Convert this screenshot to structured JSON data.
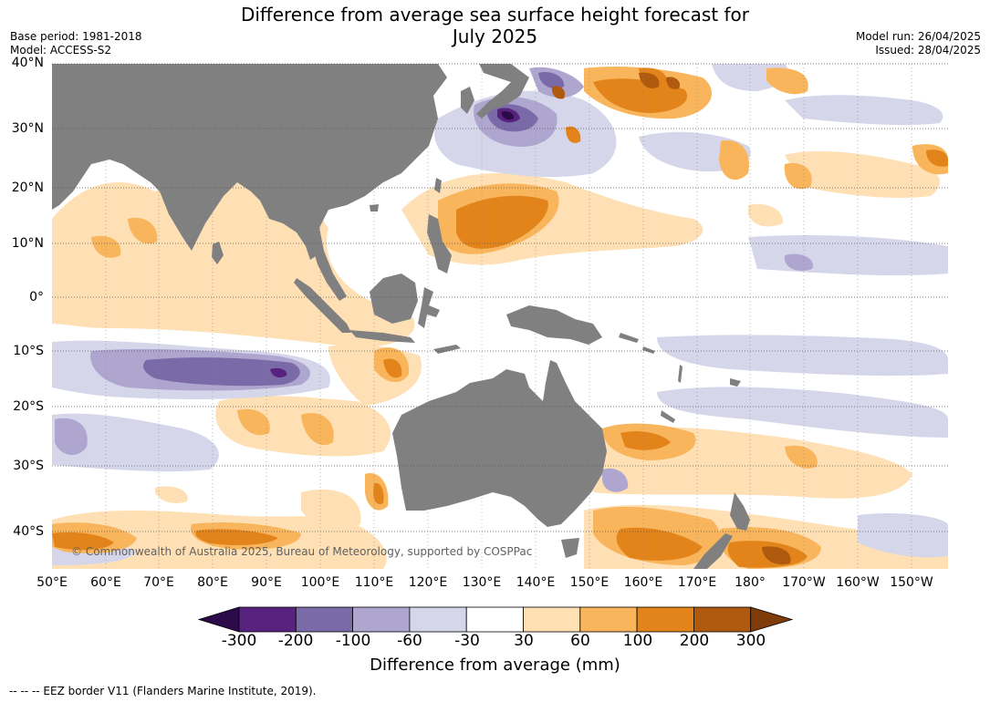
{
  "title_line1": "Difference from average sea surface height forecast for",
  "title_line2": "July 2025",
  "base_period": "Base period: 1981-2018",
  "model": "Model: ACCESS-S2",
  "model_run": "Model run: 26/04/2025",
  "issued": "Issued: 28/04/2025",
  "copyright": "© Commonwealth of Australia 2025, Bureau of Meteorology, supported by COSPPac",
  "lat_labels": [
    "40°N",
    "30°N",
    "20°N",
    "10°N",
    "0°",
    "10°S",
    "20°S",
    "30°S",
    "40°S"
  ],
  "lon_labels": [
    "50°E",
    "60°E",
    "70°E",
    "80°E",
    "90°E",
    "100°E",
    "110°E",
    "120°E",
    "130°E",
    "140°E",
    "150°E",
    "160°E",
    "170°E",
    "180°",
    "170°W",
    "160°W",
    "150°W"
  ],
  "colorbar": {
    "title": "Difference from average (mm)",
    "ticks": [
      "-300",
      "-200",
      "-100",
      "-60",
      "-30",
      "30",
      "60",
      "100",
      "200",
      "300"
    ],
    "colors": [
      "#2d0a4a",
      "#57237f",
      "#7b6aa8",
      "#aea6cf",
      "#d6d6ea",
      "#ffffff",
      "#fee0b4",
      "#f8b55c",
      "#e3841b",
      "#b05a0f",
      "#7f3b08"
    ]
  },
  "footer": "--  --  -- EEZ border V11 (Flanders Marine Institute, 2019).",
  "colors": {
    "land": "#808080",
    "grid": "#555555"
  }
}
